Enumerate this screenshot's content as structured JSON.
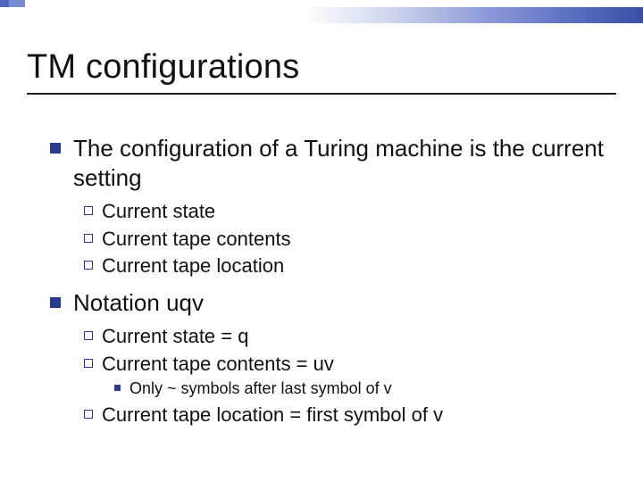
{
  "colors": {
    "bullet_fill": "#2a3a8e",
    "bullet_border": "#2a3a8e",
    "text": "#111111",
    "rule": "#1b1b1b",
    "grad_stops": [
      "#ffffff",
      "#cfd6ed",
      "#8a98d8",
      "#5b6dc0",
      "#3c4ea5"
    ]
  },
  "typography": {
    "title_fontsize": 38,
    "lvl1_fontsize": 26,
    "lvl2_fontsize": 22,
    "lvl3_fontsize": 18,
    "font_family": "Arial"
  },
  "title": "TM configurations",
  "items": [
    {
      "text": "The configuration of a Turing machine is the current setting",
      "children": [
        {
          "text": "Current state"
        },
        {
          "text": "Current tape contents"
        },
        {
          "text": "Current tape location"
        }
      ]
    },
    {
      "text": "Notation uqv",
      "children": [
        {
          "text": "Current state = q"
        },
        {
          "text": "Current tape contents = uv",
          "children": [
            {
              "text": "Only ~ symbols after last symbol of v"
            }
          ]
        },
        {
          "text": "Current tape location = first symbol of v"
        }
      ]
    }
  ]
}
